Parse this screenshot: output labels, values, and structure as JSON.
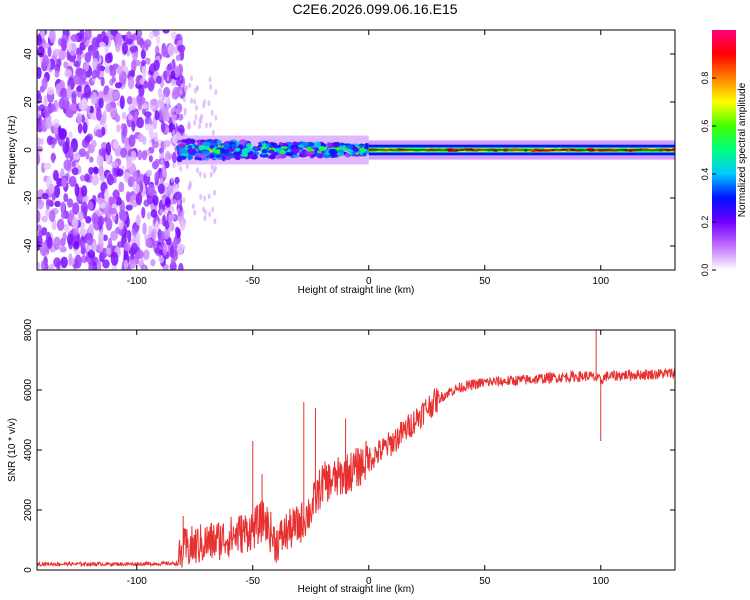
{
  "figure_title": "C2E6.2026.099.06.16.E15",
  "chart_data": [
    {
      "type": "heatmap",
      "title": "C2E6.2026.099.06.16.E15",
      "xlabel": "Height of straight line (km)",
      "ylabel": "Frequency (Hz)",
      "xlim": [
        -143,
        132
      ],
      "ylim": [
        -50,
        50
      ],
      "xticks": [
        -100,
        -50,
        0,
        50,
        100
      ],
      "yticks": [
        -40,
        -20,
        0,
        20,
        40
      ],
      "xtick_labels": [
        "-100",
        "-50",
        "0",
        "50",
        "100"
      ],
      "ytick_labels": [
        "-40",
        "-20",
        "0",
        "20",
        "40"
      ],
      "colorbar": {
        "label": "Normalized spectral amplitude",
        "range": [
          0,
          1
        ],
        "ticks": [
          0.0,
          0.2,
          0.4,
          0.6,
          0.8
        ],
        "tick_labels": [
          "0.0",
          "0.2",
          "0.4",
          "0.6",
          "0.8"
        ],
        "colors": [
          "#ffffff",
          "#c070ff",
          "#7000ff",
          "#0010ff",
          "#00c8ff",
          "#00ff80",
          "#40ff00",
          "#ffff00",
          "#ff8000",
          "#ff0000",
          "#ff0080"
        ]
      },
      "regions": [
        {
          "name": "noise",
          "x_range": [
            -143,
            -80
          ],
          "freq_range": [
            -50,
            50
          ],
          "amplitude": 0.1
        },
        {
          "name": "signal-band-broad",
          "x_range": [
            -82,
            0
          ],
          "half_width_hz": [
            4,
            2
          ],
          "amplitude": 0.45
        },
        {
          "name": "signal-band-narrow",
          "x_range": [
            0,
            132
          ],
          "half_width_hz": [
            2,
            3
          ],
          "amplitude": 0.85
        }
      ]
    },
    {
      "type": "line",
      "xlabel": "Height of straight line (km)",
      "ylabel": "SNR (10 * v/v)",
      "xlim": [
        -143,
        132
      ],
      "ylim": [
        0,
        8000
      ],
      "xticks": [
        -100,
        -50,
        0,
        50,
        100
      ],
      "yticks": [
        0,
        2000,
        4000,
        6000,
        8000
      ],
      "xtick_labels": [
        "-100",
        "-50",
        "0",
        "50",
        "100"
      ],
      "ytick_labels": [
        "0",
        "2000",
        "4000",
        "6000",
        "8000"
      ],
      "series": [
        {
          "name": "SNR",
          "color": "#e83030",
          "x": [
            -143,
            -100,
            -82,
            -80,
            -70,
            -60,
            -50,
            -45,
            -40,
            -35,
            -30,
            -25,
            -20,
            -15,
            -10,
            -5,
            0,
            5,
            10,
            15,
            20,
            25,
            30,
            35,
            40,
            50,
            60,
            70,
            80,
            90,
            95,
            98,
            100,
            102,
            110,
            120,
            132
          ],
          "y": [
            200,
            200,
            220,
            700,
            900,
            1100,
            1350,
            1700,
            900,
            1300,
            1500,
            2000,
            2900,
            3000,
            3200,
            3400,
            3700,
            3950,
            4250,
            4600,
            5000,
            5400,
            5700,
            5950,
            6100,
            6250,
            6300,
            6350,
            6420,
            6450,
            6470,
            6400,
            6300,
            6450,
            6500,
            6520,
            6560
          ]
        }
      ],
      "spikes": [
        {
          "x": -80,
          "y": 1800
        },
        {
          "x": -50,
          "y": 4300
        },
        {
          "x": -46,
          "y": 3200
        },
        {
          "x": -28,
          "y": 5600
        },
        {
          "x": -23,
          "y": 5400
        },
        {
          "x": -10,
          "y": 5050
        },
        {
          "x": 98,
          "y": 8000
        },
        {
          "x": 100,
          "y": 4300
        }
      ]
    }
  ]
}
